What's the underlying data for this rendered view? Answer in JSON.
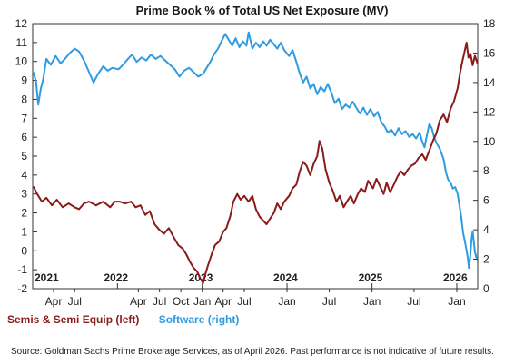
{
  "chart_data": {
    "type": "line",
    "title": "Prime Book % of Total US Net Exposure (MV)",
    "x_start": "2021-01",
    "x_end": "2026-04",
    "month_ticks": [
      {
        "date": "2021-01",
        "label": "2021",
        "year": true
      },
      {
        "date": "2021-04",
        "label": "Apr",
        "year": false
      },
      {
        "date": "2021-07",
        "label": "Jul",
        "year": false
      },
      {
        "date": "2022-01",
        "label": "2022",
        "year": true
      },
      {
        "date": "2022-04",
        "label": "Apr",
        "year": false
      },
      {
        "date": "2022-07",
        "label": "Jul",
        "year": false
      },
      {
        "date": "2022-10",
        "label": "Oct",
        "year": false
      },
      {
        "date": "2023-01",
        "label": "Jan",
        "year": false
      },
      {
        "date": "2023-01",
        "label": "2023",
        "year": true
      },
      {
        "date": "2023-04",
        "label": "Apr",
        "year": false
      },
      {
        "date": "2023-07",
        "label": "Jul",
        "year": false
      },
      {
        "date": "2024-01",
        "label": "Jan",
        "year": false
      },
      {
        "date": "2024-01",
        "label": "2024",
        "year": true
      },
      {
        "date": "2024-07",
        "label": "Jul",
        "year": false
      },
      {
        "date": "2025-01",
        "label": "Jan",
        "year": false
      },
      {
        "date": "2025-01",
        "label": "2025",
        "year": true
      },
      {
        "date": "2025-07",
        "label": "Jul",
        "year": false
      },
      {
        "date": "2026-01",
        "label": "Jan",
        "year": false
      },
      {
        "date": "2026-01",
        "label": "2026",
        "year": true
      }
    ],
    "y_left": {
      "min": -2,
      "max": 12,
      "ticks": [
        -2,
        -1,
        0,
        1,
        2,
        3,
        4,
        5,
        6,
        7,
        8,
        9,
        10,
        11,
        12
      ]
    },
    "y_right": {
      "min": 0,
      "max": 18,
      "ticks": [
        0,
        2,
        4,
        6,
        8,
        10,
        12,
        14,
        16,
        18
      ]
    },
    "series": [
      {
        "name": "Semis & Semi Equip (left)",
        "axis": "left",
        "color": "#8b1a1a",
        "points": [
          [
            "2021-01-04",
            3.4
          ],
          [
            "2021-01-20",
            3.0
          ],
          [
            "2021-02-10",
            2.6
          ],
          [
            "2021-03-01",
            2.8
          ],
          [
            "2021-03-25",
            2.4
          ],
          [
            "2021-04-15",
            2.7
          ],
          [
            "2021-05-10",
            2.3
          ],
          [
            "2021-06-05",
            2.5
          ],
          [
            "2021-07-01",
            2.3
          ],
          [
            "2021-07-20",
            2.2
          ],
          [
            "2021-08-10",
            2.5
          ],
          [
            "2021-09-01",
            2.6
          ],
          [
            "2021-10-01",
            2.4
          ],
          [
            "2021-11-01",
            2.6
          ],
          [
            "2021-12-01",
            2.3
          ],
          [
            "2021-12-20",
            2.6
          ],
          [
            "2022-01-10",
            2.6
          ],
          [
            "2022-02-01",
            2.5
          ],
          [
            "2022-03-01",
            2.6
          ],
          [
            "2022-03-20",
            2.3
          ],
          [
            "2022-04-10",
            2.4
          ],
          [
            "2022-05-01",
            1.9
          ],
          [
            "2022-05-20",
            2.1
          ],
          [
            "2022-06-10",
            1.4
          ],
          [
            "2022-07-01",
            1.1
          ],
          [
            "2022-07-20",
            0.9
          ],
          [
            "2022-08-10",
            1.2
          ],
          [
            "2022-09-01",
            0.7
          ],
          [
            "2022-09-20",
            0.3
          ],
          [
            "2022-10-10",
            0.1
          ],
          [
            "2022-10-25",
            -0.2
          ],
          [
            "2022-11-10",
            -0.6
          ],
          [
            "2022-11-25",
            -0.9
          ],
          [
            "2022-12-10",
            -1.1
          ],
          [
            "2022-12-25",
            -1.5
          ],
          [
            "2023-01-05",
            -1.7
          ],
          [
            "2023-01-15",
            -1.2
          ],
          [
            "2023-01-25",
            -0.8
          ],
          [
            "2023-02-10",
            -0.2
          ],
          [
            "2023-02-25",
            0.3
          ],
          [
            "2023-03-15",
            0.5
          ],
          [
            "2023-04-01",
            1.0
          ],
          [
            "2023-04-15",
            1.2
          ],
          [
            "2023-05-01",
            1.8
          ],
          [
            "2023-05-15",
            2.6
          ],
          [
            "2023-06-01",
            3.0
          ],
          [
            "2023-06-15",
            2.7
          ],
          [
            "2023-07-01",
            2.9
          ],
          [
            "2023-07-20",
            2.6
          ],
          [
            "2023-08-05",
            2.9
          ],
          [
            "2023-08-20",
            2.2
          ],
          [
            "2023-09-05",
            1.8
          ],
          [
            "2023-09-20",
            1.6
          ],
          [
            "2023-10-05",
            1.4
          ],
          [
            "2023-10-20",
            1.7
          ],
          [
            "2023-11-05",
            2.0
          ],
          [
            "2023-11-20",
            2.5
          ],
          [
            "2023-12-05",
            2.2
          ],
          [
            "2023-12-20",
            2.6
          ],
          [
            "2024-01-10",
            2.9
          ],
          [
            "2024-01-25",
            3.3
          ],
          [
            "2024-02-10",
            3.5
          ],
          [
            "2024-02-25",
            4.2
          ],
          [
            "2024-03-10",
            4.7
          ],
          [
            "2024-03-25",
            4.5
          ],
          [
            "2024-04-10",
            4.0
          ],
          [
            "2024-04-25",
            4.6
          ],
          [
            "2024-05-10",
            5.0
          ],
          [
            "2024-05-20",
            5.8
          ],
          [
            "2024-06-01",
            5.4
          ],
          [
            "2024-06-15",
            4.3
          ],
          [
            "2024-07-01",
            3.6
          ],
          [
            "2024-07-15",
            3.2
          ],
          [
            "2024-08-01",
            2.6
          ],
          [
            "2024-08-15",
            2.9
          ],
          [
            "2024-09-01",
            2.3
          ],
          [
            "2024-09-15",
            2.6
          ],
          [
            "2024-10-01",
            2.9
          ],
          [
            "2024-10-15",
            2.5
          ],
          [
            "2024-11-01",
            3.0
          ],
          [
            "2024-11-15",
            3.3
          ],
          [
            "2024-12-01",
            3.1
          ],
          [
            "2024-12-15",
            3.7
          ],
          [
            "2025-01-05",
            3.3
          ],
          [
            "2025-01-20",
            3.8
          ],
          [
            "2025-02-05",
            3.4
          ],
          [
            "2025-02-20",
            3.0
          ],
          [
            "2025-03-05",
            3.6
          ],
          [
            "2025-03-20",
            3.1
          ],
          [
            "2025-04-05",
            3.5
          ],
          [
            "2025-04-20",
            3.9
          ],
          [
            "2025-05-05",
            4.2
          ],
          [
            "2025-05-20",
            4.0
          ],
          [
            "2025-06-05",
            4.3
          ],
          [
            "2025-06-20",
            4.5
          ],
          [
            "2025-07-05",
            4.6
          ],
          [
            "2025-07-20",
            4.9
          ],
          [
            "2025-08-05",
            5.1
          ],
          [
            "2025-08-20",
            4.8
          ],
          [
            "2025-09-05",
            5.3
          ],
          [
            "2025-09-20",
            5.8
          ],
          [
            "2025-10-05",
            6.2
          ],
          [
            "2025-10-20",
            6.9
          ],
          [
            "2025-11-05",
            7.2
          ],
          [
            "2025-11-20",
            6.8
          ],
          [
            "2025-12-05",
            7.5
          ],
          [
            "2025-12-20",
            7.9
          ],
          [
            "2026-01-05",
            8.6
          ],
          [
            "2026-01-15",
            9.4
          ],
          [
            "2026-01-25",
            10.0
          ],
          [
            "2026-02-05",
            10.6
          ],
          [
            "2026-02-12",
            11.0
          ],
          [
            "2026-02-20",
            10.2
          ],
          [
            "2026-03-01",
            10.4
          ],
          [
            "2026-03-10",
            9.8
          ],
          [
            "2026-03-20",
            10.3
          ],
          [
            "2026-03-31",
            9.9
          ]
        ]
      },
      {
        "name": "Software (right)",
        "axis": "right",
        "color": "#2f9be0",
        "points": [
          [
            "2021-01-04",
            14.7
          ],
          [
            "2021-01-15",
            14.1
          ],
          [
            "2021-01-25",
            12.5
          ],
          [
            "2021-02-05",
            13.6
          ],
          [
            "2021-02-15",
            14.2
          ],
          [
            "2021-03-01",
            15.6
          ],
          [
            "2021-03-20",
            15.2
          ],
          [
            "2021-04-10",
            15.8
          ],
          [
            "2021-05-01",
            15.3
          ],
          [
            "2021-05-20",
            15.6
          ],
          [
            "2021-06-10",
            16.0
          ],
          [
            "2021-07-01",
            16.3
          ],
          [
            "2021-07-20",
            16.1
          ],
          [
            "2021-08-10",
            15.5
          ],
          [
            "2021-09-01",
            14.7
          ],
          [
            "2021-09-20",
            14.0
          ],
          [
            "2021-10-10",
            14.6
          ],
          [
            "2021-11-01",
            15.1
          ],
          [
            "2021-11-20",
            14.8
          ],
          [
            "2021-12-10",
            15.0
          ],
          [
            "2022-01-05",
            14.9
          ],
          [
            "2022-01-25",
            15.2
          ],
          [
            "2022-02-15",
            15.6
          ],
          [
            "2022-03-05",
            15.9
          ],
          [
            "2022-03-25",
            15.4
          ],
          [
            "2022-04-15",
            15.7
          ],
          [
            "2022-05-05",
            15.5
          ],
          [
            "2022-05-25",
            15.9
          ],
          [
            "2022-06-15",
            15.6
          ],
          [
            "2022-07-05",
            15.8
          ],
          [
            "2022-07-25",
            15.5
          ],
          [
            "2022-08-15",
            15.2
          ],
          [
            "2022-09-05",
            14.9
          ],
          [
            "2022-09-25",
            14.4
          ],
          [
            "2022-10-15",
            14.8
          ],
          [
            "2022-11-05",
            15.0
          ],
          [
            "2022-11-25",
            14.7
          ],
          [
            "2022-12-15",
            14.4
          ],
          [
            "2023-01-05",
            14.6
          ],
          [
            "2023-01-20",
            15.0
          ],
          [
            "2023-02-05",
            15.4
          ],
          [
            "2023-02-20",
            15.9
          ],
          [
            "2023-03-10",
            16.3
          ],
          [
            "2023-03-25",
            16.8
          ],
          [
            "2023-04-10",
            17.3
          ],
          [
            "2023-04-25",
            16.9
          ],
          [
            "2023-05-10",
            16.5
          ],
          [
            "2023-05-25",
            17.0
          ],
          [
            "2023-06-10",
            16.4
          ],
          [
            "2023-06-25",
            16.8
          ],
          [
            "2023-07-10",
            16.5
          ],
          [
            "2023-07-20",
            17.4
          ],
          [
            "2023-08-05",
            16.3
          ],
          [
            "2023-08-20",
            16.7
          ],
          [
            "2023-09-05",
            16.4
          ],
          [
            "2023-09-20",
            16.8
          ],
          [
            "2023-10-05",
            16.5
          ],
          [
            "2023-10-20",
            16.9
          ],
          [
            "2023-11-05",
            16.6
          ],
          [
            "2023-11-20",
            16.3
          ],
          [
            "2023-12-05",
            16.7
          ],
          [
            "2023-12-20",
            16.2
          ],
          [
            "2024-01-10",
            15.8
          ],
          [
            "2024-01-25",
            16.2
          ],
          [
            "2024-02-10",
            15.4
          ],
          [
            "2024-02-25",
            14.6
          ],
          [
            "2024-03-10",
            14.0
          ],
          [
            "2024-03-25",
            14.4
          ],
          [
            "2024-04-10",
            13.6
          ],
          [
            "2024-04-25",
            13.9
          ],
          [
            "2024-05-10",
            13.2
          ],
          [
            "2024-05-25",
            13.7
          ],
          [
            "2024-06-10",
            13.4
          ],
          [
            "2024-06-25",
            13.9
          ],
          [
            "2024-07-10",
            13.3
          ],
          [
            "2024-07-25",
            12.6
          ],
          [
            "2024-08-10",
            12.9
          ],
          [
            "2024-08-25",
            12.2
          ],
          [
            "2024-09-10",
            12.5
          ],
          [
            "2024-09-25",
            12.3
          ],
          [
            "2024-10-10",
            12.7
          ],
          [
            "2024-10-25",
            12.3
          ],
          [
            "2024-11-10",
            11.9
          ],
          [
            "2024-11-25",
            12.3
          ],
          [
            "2024-12-10",
            11.8
          ],
          [
            "2024-12-25",
            12.2
          ],
          [
            "2025-01-10",
            11.7
          ],
          [
            "2025-01-25",
            12.0
          ],
          [
            "2025-02-10",
            11.3
          ],
          [
            "2025-02-25",
            11.0
          ],
          [
            "2025-03-10",
            10.6
          ],
          [
            "2025-03-25",
            10.8
          ],
          [
            "2025-04-10",
            10.4
          ],
          [
            "2025-04-25",
            10.9
          ],
          [
            "2025-05-10",
            10.5
          ],
          [
            "2025-05-25",
            10.7
          ],
          [
            "2025-06-10",
            10.3
          ],
          [
            "2025-06-25",
            10.5
          ],
          [
            "2025-07-10",
            10.2
          ],
          [
            "2025-07-25",
            10.6
          ],
          [
            "2025-08-05",
            10.0
          ],
          [
            "2025-08-15",
            9.6
          ],
          [
            "2025-08-25",
            10.4
          ],
          [
            "2025-09-05",
            11.2
          ],
          [
            "2025-09-15",
            10.9
          ],
          [
            "2025-09-25",
            10.3
          ],
          [
            "2025-10-05",
            9.9
          ],
          [
            "2025-10-20",
            9.5
          ],
          [
            "2025-11-05",
            8.8
          ],
          [
            "2025-11-15",
            7.9
          ],
          [
            "2025-11-25",
            7.4
          ],
          [
            "2025-12-05",
            7.2
          ],
          [
            "2025-12-15",
            6.8
          ],
          [
            "2025-12-25",
            6.9
          ],
          [
            "2026-01-05",
            6.4
          ],
          [
            "2026-01-12",
            5.7
          ],
          [
            "2026-01-20",
            4.9
          ],
          [
            "2026-01-28",
            3.8
          ],
          [
            "2026-02-05",
            3.2
          ],
          [
            "2026-02-12",
            2.6
          ],
          [
            "2026-02-18",
            2.0
          ],
          [
            "2026-02-22",
            1.4
          ],
          [
            "2026-02-28",
            2.2
          ],
          [
            "2026-03-05",
            3.3
          ],
          [
            "2026-03-10",
            3.9
          ],
          [
            "2026-03-15",
            3.2
          ],
          [
            "2026-03-20",
            2.5
          ],
          [
            "2026-03-26",
            2.1
          ],
          [
            "2026-03-31",
            2.3
          ]
        ]
      }
    ],
    "legend": {
      "placement": "bottom-left"
    },
    "grid": false
  },
  "legend_labels": {
    "semis": "Semis & Semi Equip (left)",
    "software": "Software (right)"
  },
  "source_text": "Source: Goldman Sachs Prime Brokerage Services, as of April 2026. Past performance is not indicative of future results."
}
